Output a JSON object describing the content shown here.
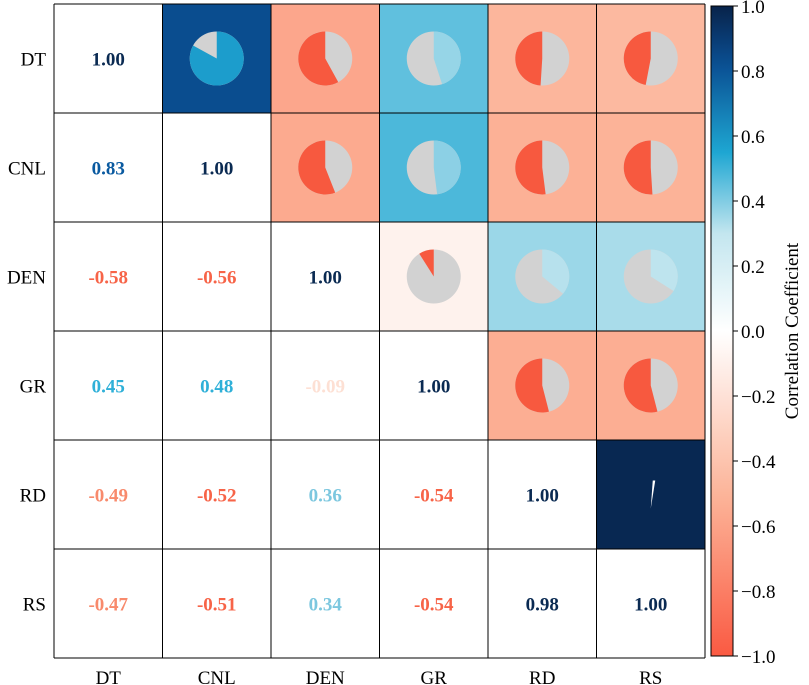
{
  "chart_data": {
    "type": "heatmap",
    "variables": [
      "DT",
      "CNL",
      "DEN",
      "GR",
      "RD",
      "RS"
    ],
    "matrix": [
      [
        1.0,
        0.83,
        -0.58,
        0.45,
        -0.49,
        -0.47
      ],
      [
        0.83,
        1.0,
        -0.56,
        0.48,
        -0.52,
        -0.51
      ],
      [
        -0.58,
        -0.56,
        1.0,
        -0.09,
        0.36,
        0.34
      ],
      [
        0.45,
        0.48,
        -0.09,
        1.0,
        -0.54,
        -0.54
      ],
      [
        -0.49,
        -0.52,
        0.36,
        -0.54,
        1.0,
        0.98
      ],
      [
        -0.47,
        -0.51,
        0.34,
        -0.54,
        0.98,
        1.0
      ]
    ],
    "labels": {
      "1.00": "1.00",
      "0.83": "0.83",
      "-0.58": "-0.58",
      "-0.56": "-0.56",
      "0.45": "0.45",
      "0.48": "0.48",
      "-0.09": "-0.09",
      "-0.49": "-0.49",
      "-0.52": "-0.52",
      "0.36": "0.36",
      "-0.54": "-0.54",
      "-0.47": "-0.47",
      "-0.51": "-0.51",
      "0.34": "0.34",
      "0.98": "0.98"
    },
    "upper_triangle": "colored cells with pie glyphs",
    "lower_triangle": "numeric values",
    "colorbar": {
      "title": "Correlation Coefficient",
      "vmin": -1.0,
      "vmax": 1.0,
      "ticks": [
        "1.0",
        "0.8",
        "0.6",
        "0.4",
        "0.2",
        "0.0",
        "−0.2",
        "−0.4",
        "−0.6",
        "−0.8",
        "−1.0"
      ],
      "tick_values": [
        1.0,
        0.8,
        0.6,
        0.4,
        0.2,
        0.0,
        -0.2,
        -0.4,
        -0.6,
        -0.8,
        -1.0
      ],
      "colors": {
        "neg_end": "#fa5a42",
        "neg_mid": "#fcb59a",
        "zero": "#ffffff",
        "pos_light": "#c3e6ef",
        "pos_mid": "#1ea6d2",
        "pos_dark": "#0a4f93",
        "pos_end": "#08234a"
      }
    },
    "pie_colors": {
      "positive": "#ffffff",
      "negative": "#f7593f",
      "remainder": "#d2d2d2"
    }
  }
}
